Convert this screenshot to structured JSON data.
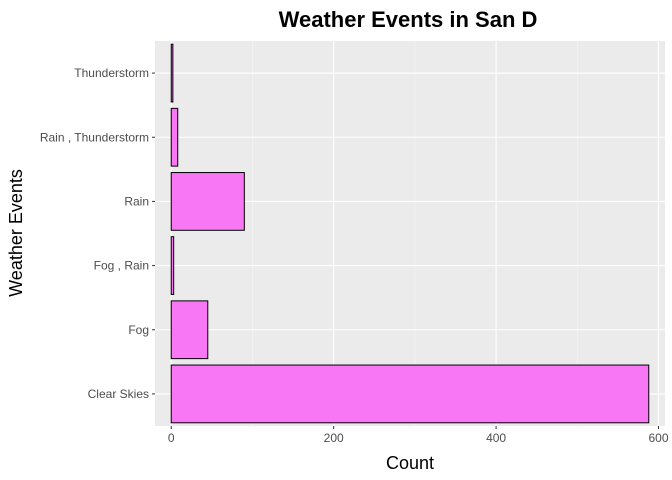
{
  "chart_data": {
    "type": "bar",
    "orientation": "horizontal",
    "title": "Weather Events in San D",
    "xlabel": "Count",
    "ylabel": "Weather Events",
    "categories": [
      "Clear Skies",
      "Fog",
      "Fog , Rain",
      "Rain",
      "Rain , Thunderstorm",
      "Thunderstorm"
    ],
    "values": [
      588,
      45,
      3,
      90,
      8,
      2
    ],
    "xlim": [
      -20,
      608
    ],
    "xticks": [
      0,
      200,
      400,
      600
    ],
    "grid": true,
    "legend": "none",
    "colors": {
      "bar_fill": "#f777f4",
      "bar_stroke": "#000000",
      "panel_bg": "#ebebeb",
      "grid_major": "#ffffff",
      "grid_minor": "#f5f5f5"
    }
  }
}
